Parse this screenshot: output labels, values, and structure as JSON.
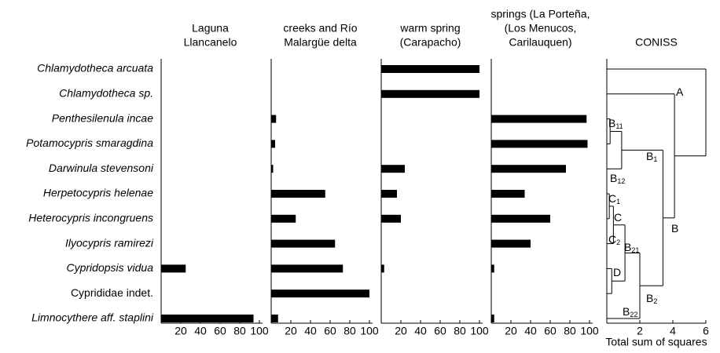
{
  "chart_data": [
    {
      "type": "hbar",
      "title": [
        "Laguna",
        "Llancanelo"
      ],
      "categories": [
        "Chlamydotheca arcuata",
        "Chlamydotheca sp.",
        "Penthesilenula incae",
        "Potamocypris smaragdina",
        "Darwinula stevensoni",
        "Herpetocypris helenae",
        "Heterocypris incongruens",
        "Ilyocypris ramirezi",
        "Cypridopsis vidua",
        "Cyprididae indet.",
        "Limnocythere aff. staplini"
      ],
      "label_style": [
        "italic",
        "italic",
        "italic",
        "italic",
        "italic",
        "italic",
        "italic",
        "italic",
        "italic",
        "normal",
        "italic"
      ],
      "values": [
        0,
        0,
        0,
        0,
        0,
        0,
        0,
        0,
        25,
        0,
        94
      ],
      "color": "#000000",
      "xlim": [
        0,
        100
      ],
      "xticks": [
        20,
        40,
        60,
        80,
        100
      ]
    },
    {
      "type": "hbar",
      "title": [
        "creeks and Río",
        "Malargüe delta"
      ],
      "values": [
        0,
        0,
        5,
        4,
        2,
        55,
        25,
        65,
        73,
        100,
        7
      ],
      "color": "#000000",
      "xlim": [
        0,
        100
      ],
      "xticks": [
        20,
        40,
        60,
        80,
        100
      ]
    },
    {
      "type": "hbar",
      "title": [
        "warm spring",
        "(Carapacho)"
      ],
      "values": [
        100,
        100,
        0,
        0,
        24,
        16,
        20,
        0,
        3,
        0,
        0
      ],
      "color": "#000000",
      "xlim": [
        0,
        100
      ],
      "xticks": [
        20,
        40,
        60,
        80,
        100
      ]
    },
    {
      "type": "hbar",
      "title": [
        "springs (La Porteña,",
        "(Los Menucos,",
        "Carilauquen)"
      ],
      "values": [
        0,
        0,
        97,
        98,
        76,
        34,
        60,
        40,
        3,
        0,
        3
      ],
      "color": "#000000",
      "xlim": [
        0,
        100
      ],
      "xticks": [
        20,
        40,
        60,
        80,
        100
      ]
    },
    {
      "type": "dendrogram",
      "title": [
        "CONISS"
      ],
      "xlabel": "Total sum of squares",
      "xlim": [
        0,
        6
      ],
      "xticks": [
        2,
        4,
        6
      ],
      "merges": [
        [
          2,
          3,
          0.2
        ],
        [
          11,
          4,
          0.9
        ],
        [
          5,
          6,
          0.15
        ],
        [
          13,
          7,
          0.4
        ],
        [
          8,
          9,
          0.3
        ],
        [
          14,
          15,
          1.1
        ],
        [
          16,
          10,
          2.0
        ],
        [
          12,
          17,
          3.4
        ],
        [
          1,
          18,
          4.1
        ],
        [
          0,
          19,
          6.0
        ]
      ],
      "labels": [
        {
          "text": "A"
        },
        {
          "text": "B",
          "sub": "11"
        },
        {
          "text": "B",
          "sub": "1"
        },
        {
          "text": "B",
          "sub": "12"
        },
        {
          "text": "C",
          "sub": "1"
        },
        {
          "text": "C"
        },
        {
          "text": "C",
          "sub": "2"
        },
        {
          "text": "B",
          "sub": "21"
        },
        {
          "text": "D"
        },
        {
          "text": "B",
          "sub": "2"
        },
        {
          "text": "B",
          "sub": "22"
        },
        {
          "text": "B"
        }
      ]
    }
  ]
}
